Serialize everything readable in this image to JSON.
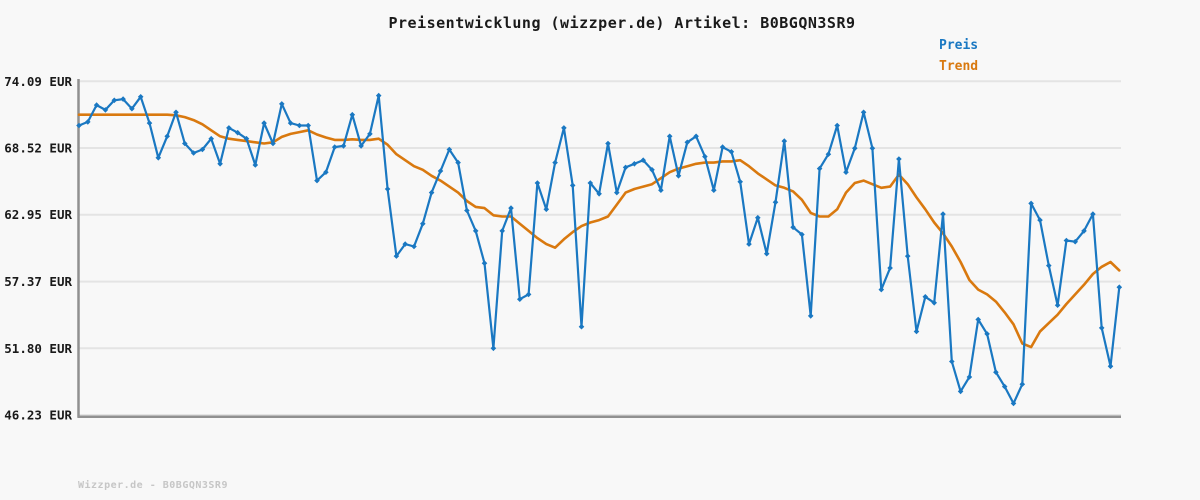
{
  "header": {
    "title": "Preisentwicklung (wizzper.de) Artikel: B0BGQN3SR9"
  },
  "legend": {
    "position": "top-right",
    "items": [
      {
        "label": "Preis",
        "color": "#1a78c2"
      },
      {
        "label": "Trend",
        "color": "#d9790f"
      }
    ]
  },
  "footer": {
    "text": "Wizzper.de - B0BGQN3SR9"
  },
  "colors": {
    "background": "#f8f8f8",
    "price_line": "#1a78c2",
    "trend_line": "#d9790f",
    "gridline": "#e4e4e4",
    "axis_spine": "#909090",
    "tick_text": "#1a1a1a",
    "title_text": "#1a1a1a",
    "watermark_text": "#c6c6c6"
  },
  "chart_data": {
    "type": "line",
    "title": "Preisentwicklung (wizzper.de) Artikel: B0BGQN3SR9",
    "xlabel": "",
    "ylabel": "",
    "x_tick_labels": [],
    "grid": "horizontal-only",
    "legend_position": "top-right",
    "ylim": [
      46.23,
      74.09
    ],
    "currency": "EUR",
    "y_ticks": [
      {
        "value": 74.09,
        "label": "74.09 EUR"
      },
      {
        "value": 68.52,
        "label": "68.52 EUR"
      },
      {
        "value": 62.95,
        "label": "62.95 EUR"
      },
      {
        "value": 57.37,
        "label": "57.37 EUR"
      },
      {
        "value": 51.8,
        "label": "51.80 EUR"
      },
      {
        "value": 46.23,
        "label": "46.23 EUR"
      }
    ],
    "series": [
      {
        "name": "Preis",
        "color": "#1a78c2",
        "marker": "diamond",
        "values": [
          70.4,
          70.7,
          72.1,
          71.7,
          72.5,
          72.6,
          71.8,
          72.8,
          70.6,
          67.7,
          69.5,
          71.5,
          68.9,
          68.1,
          68.4,
          69.3,
          67.2,
          70.2,
          69.8,
          69.3,
          67.1,
          70.6,
          68.9,
          72.2,
          70.6,
          70.4,
          70.4,
          65.8,
          66.5,
          68.6,
          68.7,
          71.3,
          68.7,
          69.7,
          72.9,
          65.1,
          59.5,
          60.5,
          60.3,
          62.2,
          64.8,
          66.6,
          68.4,
          67.3,
          63.3,
          61.6,
          58.9,
          51.8,
          61.6,
          63.5,
          55.9,
          56.3,
          65.6,
          63.4,
          67.3,
          70.2,
          65.4,
          53.6,
          65.6,
          64.7,
          68.9,
          64.8,
          66.9,
          67.2,
          67.5,
          66.7,
          65.0,
          69.5,
          66.2,
          69.0,
          69.5,
          67.8,
          65.0,
          68.6,
          68.2,
          65.7,
          60.5,
          62.7,
          59.7,
          64.0,
          69.1,
          61.9,
          61.3,
          54.5,
          66.8,
          68.0,
          70.4,
          66.5,
          68.5,
          71.5,
          68.5,
          56.7,
          58.5,
          67.6,
          59.5,
          53.2,
          56.1,
          55.6,
          63.0,
          50.7,
          48.2,
          49.4,
          54.2,
          53.0,
          49.8,
          48.6,
          47.2,
          48.8,
          63.9,
          62.5,
          58.7,
          55.4,
          60.8,
          60.7,
          61.6,
          63.0,
          53.5,
          50.3,
          56.9
        ]
      },
      {
        "name": "Trend",
        "color": "#d9790f",
        "marker": "none",
        "values": [
          71.3,
          71.3,
          71.3,
          71.3,
          71.3,
          71.3,
          71.3,
          71.3,
          71.3,
          71.3,
          71.3,
          71.25,
          71.1,
          70.85,
          70.5,
          70.0,
          69.5,
          69.3,
          69.2,
          69.1,
          69.0,
          68.9,
          69.0,
          69.45,
          69.7,
          69.85,
          70.0,
          69.65,
          69.4,
          69.2,
          69.2,
          69.25,
          69.2,
          69.2,
          69.3,
          68.8,
          68.0,
          67.5,
          67.0,
          66.7,
          66.2,
          65.8,
          65.3,
          64.8,
          64.1,
          63.6,
          63.5,
          62.9,
          62.8,
          62.8,
          62.2,
          61.6,
          61.0,
          60.5,
          60.2,
          60.9,
          61.5,
          62.0,
          62.3,
          62.5,
          62.8,
          63.8,
          64.8,
          65.1,
          65.3,
          65.5,
          66.0,
          66.5,
          66.8,
          67.0,
          67.2,
          67.3,
          67.3,
          67.4,
          67.4,
          67.5,
          67.0,
          66.4,
          65.9,
          65.4,
          65.2,
          64.9,
          64.2,
          63.1,
          62.8,
          62.8,
          63.4,
          64.8,
          65.6,
          65.8,
          65.5,
          65.2,
          65.3,
          66.3,
          65.5,
          64.4,
          63.4,
          62.3,
          61.4,
          60.3,
          59.0,
          57.5,
          56.7,
          56.3,
          55.7,
          54.8,
          53.8,
          52.2,
          51.9,
          53.2,
          53.9,
          54.6,
          55.5,
          56.3,
          57.1,
          58.0,
          58.6,
          59.0,
          58.3
        ]
      }
    ]
  }
}
